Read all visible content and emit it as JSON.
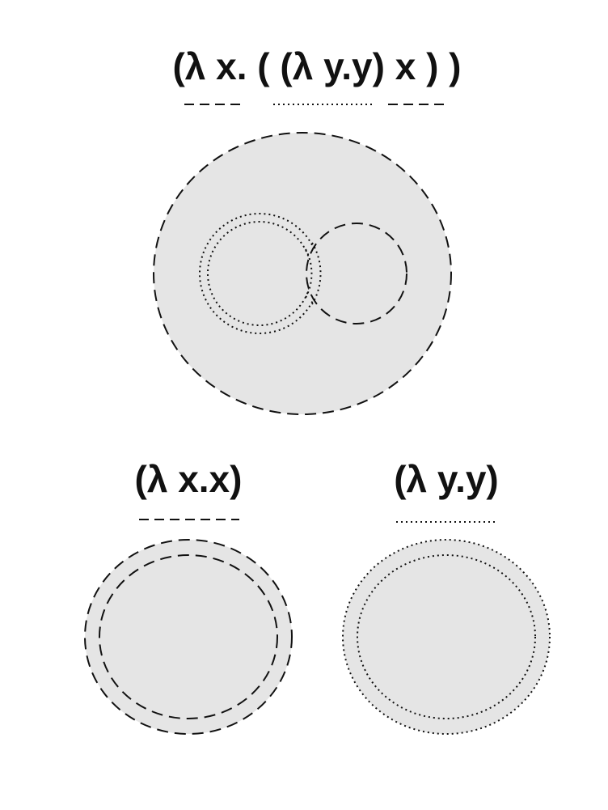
{
  "expressions": {
    "composite": "(λ x. ( (λ y.y) x ) )",
    "identity_x": "(λ x.x)",
    "identity_y": "(λ y.y)"
  },
  "colors": {
    "circle_fill": "#e5e5e5",
    "stroke": "#111111",
    "text": "#111111"
  },
  "line_styles": {
    "x_binding": "dashed",
    "y_binding": "dotted"
  }
}
